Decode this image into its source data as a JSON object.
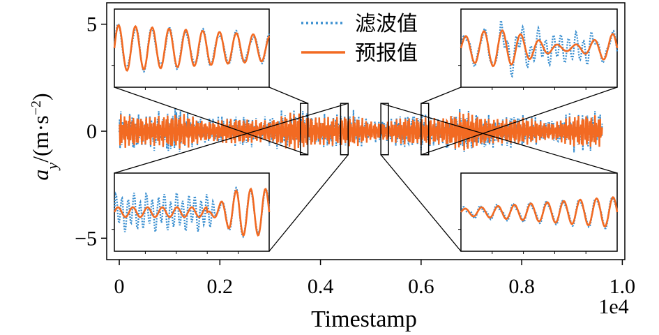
{
  "chart_data": {
    "type": "line",
    "xlabel": "Timestamp",
    "ylabel_main": "a",
    "ylabel_sub": "y",
    "ylabel_units_prefix": "/(m·s",
    "ylabel_units_sup": "−2",
    "ylabel_units_suffix": ")",
    "x_offset_text": "1e4",
    "xlim": [
      -250,
      10050
    ],
    "ylim": [
      -6,
      6
    ],
    "x_ticks": [
      0,
      2000,
      4000,
      6000,
      8000,
      10000
    ],
    "x_tick_labels": [
      "0",
      "0.2",
      "0.4",
      "0.6",
      "0.8",
      "1.0"
    ],
    "y_ticks": [
      -5,
      0,
      5
    ],
    "y_tick_labels": [
      "−5",
      "0",
      "5"
    ],
    "grid": false,
    "legend": {
      "position": "top-center",
      "entries": [
        {
          "label": "滤波值",
          "color": "#3a8fd0",
          "style": "dotted"
        },
        {
          "label": "预报值",
          "color": "#f26a22",
          "style": "solid"
        }
      ]
    },
    "series": [
      {
        "name": "滤波值",
        "color": "#3a8fd0",
        "style": "dotted",
        "x_range": [
          0,
          9600
        ],
        "amplitude": 1.0,
        "noise_amplitude": 0.35
      },
      {
        "name": "预报值",
        "color": "#f26a22",
        "style": "solid",
        "x_range": [
          0,
          9600
        ],
        "amplitude": 0.9
      }
    ],
    "zoom_regions": [
      {
        "x_range": [
          3600,
          3750
        ],
        "y_range": [
          -1.1,
          1.3
        ],
        "inset": "top-left",
        "pattern": "leading"
      },
      {
        "x_range": [
          4400,
          4550
        ],
        "y_range": [
          -1.1,
          1.3
        ],
        "inset": "bottom-left",
        "pattern": "noisy-then-wave"
      },
      {
        "x_range": [
          5200,
          5350
        ],
        "y_range": [
          -1.1,
          1.3
        ],
        "inset": "bottom-right",
        "pattern": "small-wave"
      },
      {
        "x_range": [
          6000,
          6150
        ],
        "y_range": [
          -1.1,
          1.3
        ],
        "inset": "top-right",
        "pattern": "noisy"
      }
    ]
  },
  "colors": {
    "filtered": "#3a8fd0",
    "forecast": "#f26a22",
    "axis": "#000000"
  }
}
